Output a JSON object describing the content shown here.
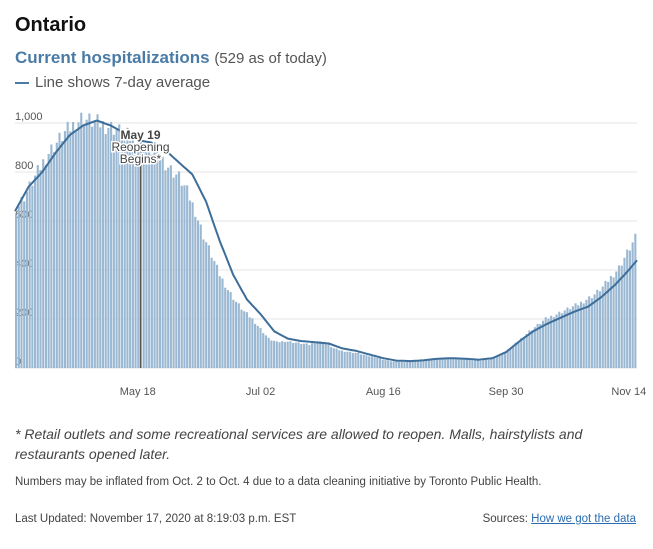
{
  "region": "Ontario",
  "subtitle": {
    "main": "Current hospitalizations",
    "count": "(529 as of today)"
  },
  "legend_note": "Line shows 7-day average",
  "footnote": "* Retail outlets and some recreational services are allowed to reopen. Malls, hairstylists and restaurants opened later.",
  "note": "Numbers may be inflated from Oct. 2 to Oct. 4 due to a data cleaning initiative by Toronto Public Health.",
  "updated": "Last Updated: November 17, 2020 at 8:19:03 p.m. EST",
  "sources": {
    "label": "Sources:",
    "link": "How we got the data"
  },
  "colors": {
    "bar": "#9bb8d3",
    "line": "#3d6d99",
    "annotation": "#555555",
    "grid": "#e6e6e6"
  },
  "chart_data": {
    "type": "bar",
    "x_start": "2020-04-03",
    "x_end": "2020-11-17",
    "ylim": [
      0,
      1000
    ],
    "y_ticks": [
      0,
      200,
      400,
      600,
      800,
      1000
    ],
    "y_tick_labels": [
      "0",
      "200",
      "400",
      "600",
      "800",
      "1,000"
    ],
    "x_ticks": [
      {
        "date": "2020-05-18",
        "label": "May 18"
      },
      {
        "date": "2020-07-02",
        "label": "Jul 02"
      },
      {
        "date": "2020-08-16",
        "label": "Aug 16"
      },
      {
        "date": "2020-09-30",
        "label": "Sep 30"
      },
      {
        "date": "2020-11-14",
        "label": "Nov 14"
      }
    ],
    "annotation": {
      "date": "2020-05-19",
      "lines": [
        "May 19",
        "Reopening",
        "Begins*"
      ]
    },
    "series": [
      {
        "type": "bar",
        "anchors": [
          [
            "2020-04-03",
            650
          ],
          [
            "2020-04-06",
            700
          ],
          [
            "2020-04-09",
            760
          ],
          [
            "2020-04-12",
            820
          ],
          [
            "2020-04-15",
            880
          ],
          [
            "2020-04-18",
            920
          ],
          [
            "2020-04-21",
            960
          ],
          [
            "2020-04-24",
            990
          ],
          [
            "2020-04-27",
            1020
          ],
          [
            "2020-04-30",
            1010
          ],
          [
            "2020-05-03",
            1000
          ],
          [
            "2020-05-06",
            990
          ],
          [
            "2020-05-09",
            980
          ],
          [
            "2020-05-12",
            960
          ],
          [
            "2020-05-15",
            940
          ],
          [
            "2020-05-18",
            930
          ],
          [
            "2020-05-21",
            910
          ],
          [
            "2020-05-24",
            880
          ],
          [
            "2020-05-27",
            850
          ],
          [
            "2020-05-30",
            810
          ],
          [
            "2020-06-02",
            780
          ],
          [
            "2020-06-05",
            720
          ],
          [
            "2020-06-08",
            640
          ],
          [
            "2020-06-11",
            540
          ],
          [
            "2020-06-14",
            460
          ],
          [
            "2020-06-17",
            380
          ],
          [
            "2020-06-20",
            320
          ],
          [
            "2020-06-23",
            270
          ],
          [
            "2020-06-26",
            230
          ],
          [
            "2020-06-29",
            200
          ],
          [
            "2020-07-02",
            160
          ],
          [
            "2020-07-05",
            120
          ],
          [
            "2020-07-08",
            105
          ],
          [
            "2020-07-11",
            110
          ],
          [
            "2020-07-14",
            105
          ],
          [
            "2020-07-17",
            100
          ],
          [
            "2020-07-20",
            95
          ],
          [
            "2020-07-23",
            110
          ],
          [
            "2020-07-26",
            100
          ],
          [
            "2020-07-29",
            80
          ],
          [
            "2020-08-01",
            70
          ],
          [
            "2020-08-04",
            65
          ],
          [
            "2020-08-07",
            60
          ],
          [
            "2020-08-10",
            50
          ],
          [
            "2020-08-13",
            45
          ],
          [
            "2020-08-16",
            35
          ],
          [
            "2020-08-19",
            28
          ],
          [
            "2020-08-22",
            25
          ],
          [
            "2020-08-25",
            25
          ],
          [
            "2020-08-28",
            28
          ],
          [
            "2020-08-31",
            32
          ],
          [
            "2020-09-03",
            36
          ],
          [
            "2020-09-06",
            40
          ],
          [
            "2020-09-09",
            42
          ],
          [
            "2020-09-12",
            40
          ],
          [
            "2020-09-15",
            36
          ],
          [
            "2020-09-18",
            32
          ],
          [
            "2020-09-21",
            30
          ],
          [
            "2020-09-24",
            34
          ],
          [
            "2020-09-27",
            48
          ],
          [
            "2020-09-30",
            65
          ],
          [
            "2020-10-03",
            90
          ],
          [
            "2020-10-06",
            120
          ],
          [
            "2020-10-09",
            150
          ],
          [
            "2020-10-12",
            175
          ],
          [
            "2020-10-15",
            200
          ],
          [
            "2020-10-18",
            215
          ],
          [
            "2020-10-21",
            230
          ],
          [
            "2020-10-24",
            245
          ],
          [
            "2020-10-27",
            260
          ],
          [
            "2020-10-30",
            280
          ],
          [
            "2020-11-02",
            300
          ],
          [
            "2020-11-05",
            330
          ],
          [
            "2020-11-08",
            370
          ],
          [
            "2020-11-11",
            410
          ],
          [
            "2020-11-14",
            470
          ],
          [
            "2020-11-17",
            529
          ]
        ]
      },
      {
        "type": "line",
        "anchors": [
          [
            "2020-04-03",
            640
          ],
          [
            "2020-04-08",
            740
          ],
          [
            "2020-04-13",
            800
          ],
          [
            "2020-04-18",
            880
          ],
          [
            "2020-04-23",
            950
          ],
          [
            "2020-04-28",
            990
          ],
          [
            "2020-05-03",
            1010
          ],
          [
            "2020-05-08",
            990
          ],
          [
            "2020-05-13",
            960
          ],
          [
            "2020-05-18",
            930
          ],
          [
            "2020-05-23",
            920
          ],
          [
            "2020-05-28",
            890
          ],
          [
            "2020-06-02",
            840
          ],
          [
            "2020-06-07",
            790
          ],
          [
            "2020-06-12",
            680
          ],
          [
            "2020-06-17",
            520
          ],
          [
            "2020-06-22",
            380
          ],
          [
            "2020-06-27",
            280
          ],
          [
            "2020-07-02",
            220
          ],
          [
            "2020-07-07",
            150
          ],
          [
            "2020-07-12",
            120
          ],
          [
            "2020-07-17",
            110
          ],
          [
            "2020-07-22",
            105
          ],
          [
            "2020-07-27",
            100
          ],
          [
            "2020-08-01",
            80
          ],
          [
            "2020-08-06",
            70
          ],
          [
            "2020-08-11",
            55
          ],
          [
            "2020-08-16",
            40
          ],
          [
            "2020-08-21",
            30
          ],
          [
            "2020-08-26",
            28
          ],
          [
            "2020-08-31",
            32
          ],
          [
            "2020-09-05",
            38
          ],
          [
            "2020-09-10",
            40
          ],
          [
            "2020-09-15",
            38
          ],
          [
            "2020-09-20",
            34
          ],
          [
            "2020-09-25",
            40
          ],
          [
            "2020-09-30",
            65
          ],
          [
            "2020-10-05",
            110
          ],
          [
            "2020-10-10",
            150
          ],
          [
            "2020-10-15",
            180
          ],
          [
            "2020-10-20",
            205
          ],
          [
            "2020-10-25",
            230
          ],
          [
            "2020-10-30",
            250
          ],
          [
            "2020-11-04",
            290
          ],
          [
            "2020-11-09",
            340
          ],
          [
            "2020-11-14",
            400
          ],
          [
            "2020-11-17",
            440
          ]
        ]
      }
    ]
  }
}
